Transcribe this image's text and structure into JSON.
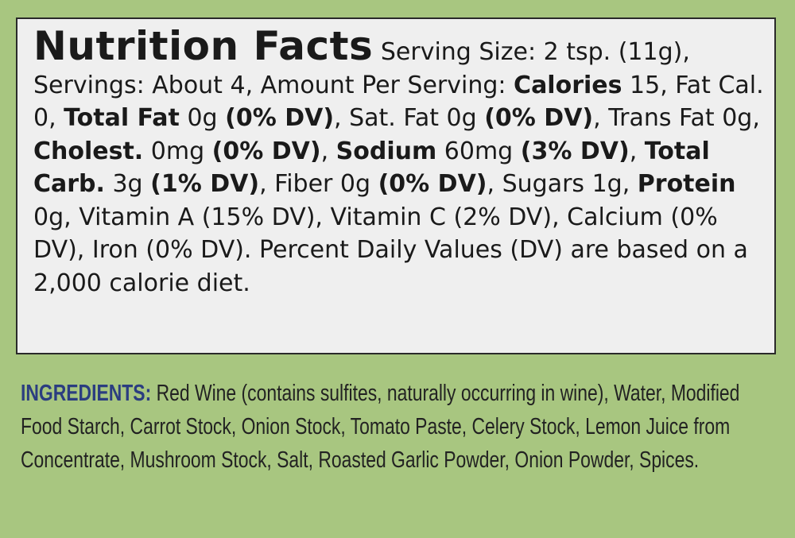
{
  "label": {
    "title": "Nutrition Facts",
    "nutrition": [
      {
        "text": "Serving Size: 2 tsp. (11g), Servings: About 4, Amount Per Serving: ",
        "bold": false
      },
      {
        "text": "Calories",
        "bold": true
      },
      {
        "text": " 15, Fat Cal. 0, ",
        "bold": false
      },
      {
        "text": "Total Fat",
        "bold": true
      },
      {
        "text": " 0g ",
        "bold": false
      },
      {
        "text": "(0% DV)",
        "bold": true
      },
      {
        "text": ", Sat. Fat 0g ",
        "bold": false
      },
      {
        "text": "(0% DV)",
        "bold": true
      },
      {
        "text": ", Trans Fat 0g, ",
        "bold": false
      },
      {
        "text": "Cholest.",
        "bold": true
      },
      {
        "text": " 0mg ",
        "bold": false
      },
      {
        "text": "(0% DV)",
        "bold": true
      },
      {
        "text": ", ",
        "bold": false
      },
      {
        "text": "Sodium",
        "bold": true
      },
      {
        "text": " 60mg ",
        "bold": false
      },
      {
        "text": "(3% DV)",
        "bold": true
      },
      {
        "text": ", ",
        "bold": false
      },
      {
        "text": "Total Carb.",
        "bold": true
      },
      {
        "text": " 3g ",
        "bold": false
      },
      {
        "text": "(1% DV)",
        "bold": true
      },
      {
        "text": ", Fiber 0g ",
        "bold": false
      },
      {
        "text": "(0% DV)",
        "bold": true
      },
      {
        "text": ", Sugars 1g, ",
        "bold": false
      },
      {
        "text": "Protein",
        "bold": true
      },
      {
        "text": " 0g, Vitamin A (15% DV), Vitamin C (2% DV), Calcium (0% DV), Iron (0% DV). Percent Daily Values (DV) are based on a 2,000 calorie diet.",
        "bold": false
      }
    ],
    "ingredients": {
      "heading": "INGREDIENTS:",
      "text": "Red Wine (contains sulfites, naturally occurring in wine), Water, Modified Food Starch, Carrot Stock, Onion Stock, Tomato Paste, Celery Stock, Lemon Juice from Concentrate, Mushroom Stock, Salt, Roasted Garlic Powder, Onion Powder, Spices."
    }
  }
}
